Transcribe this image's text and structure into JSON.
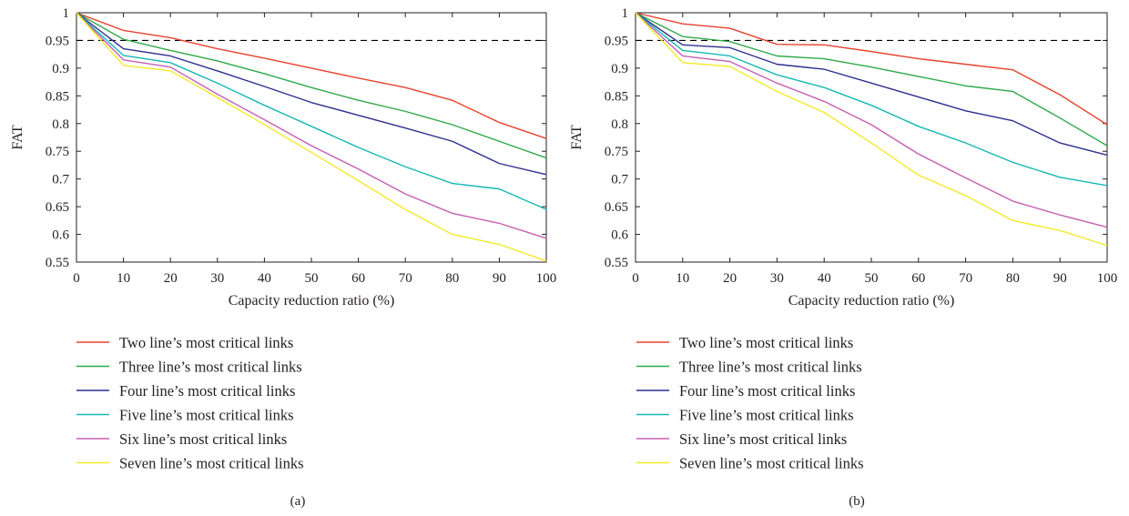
{
  "chart_data": [
    {
      "type": "line",
      "panel_label": "(a)",
      "xlabel": "Capacity reduction ratio (%)",
      "ylabel": "FAT",
      "xlim": [
        0,
        100
      ],
      "ylim": [
        0.55,
        1
      ],
      "x_ticks": [
        "0",
        "10",
        "20",
        "30",
        "40",
        "50",
        "60",
        "70",
        "80",
        "90",
        "100"
      ],
      "y_ticks": [
        "0.55",
        "0.6",
        "0.65",
        "0.7",
        "0.75",
        "0.8",
        "0.85",
        "0.9",
        "0.95",
        "1"
      ],
      "grid": false,
      "legend_position": "below",
      "reference_line": {
        "y": 0.95,
        "style": "dashed",
        "color": "#000000"
      },
      "x": [
        0,
        10,
        20,
        30,
        40,
        50,
        60,
        70,
        80,
        90,
        100
      ],
      "series": [
        {
          "name": "Two line’s most critical links",
          "color": "#e8432f",
          "values": [
            1,
            0.968,
            0.955,
            0.935,
            0.918,
            0.9,
            0.882,
            0.865,
            0.842,
            0.802,
            0.773
          ]
        },
        {
          "name": "Three line’s most critical links",
          "color": "#2fa94a",
          "values": [
            1,
            0.952,
            0.932,
            0.913,
            0.89,
            0.865,
            0.842,
            0.822,
            0.798,
            0.768,
            0.738
          ]
        },
        {
          "name": "Four line’s most critical links",
          "color": "#2d2f8e",
          "values": [
            1,
            0.935,
            0.922,
            0.895,
            0.867,
            0.838,
            0.815,
            0.792,
            0.768,
            0.728,
            0.708
          ]
        },
        {
          "name": "Five line’s most critical links",
          "color": "#14b8b4",
          "values": [
            1,
            0.923,
            0.91,
            0.873,
            0.833,
            0.795,
            0.757,
            0.722,
            0.692,
            0.682,
            0.645
          ]
        },
        {
          "name": "Six line’s most critical links",
          "color": "#c55fb1",
          "values": [
            1,
            0.915,
            0.902,
            0.853,
            0.807,
            0.76,
            0.718,
            0.673,
            0.638,
            0.62,
            0.593
          ]
        },
        {
          "name": "Seven line’s most critical links",
          "color": "#f2ea2a",
          "values": [
            1,
            0.905,
            0.895,
            0.847,
            0.798,
            0.748,
            0.697,
            0.645,
            0.6,
            0.582,
            0.552
          ]
        }
      ]
    },
    {
      "type": "line",
      "panel_label": "(b)",
      "xlabel": "Capacity reduction ratio (%)",
      "ylabel": "FAT",
      "xlim": [
        0,
        100
      ],
      "ylim": [
        0.55,
        1
      ],
      "x_ticks": [
        "0",
        "10",
        "20",
        "30",
        "40",
        "50",
        "60",
        "70",
        "80",
        "90",
        "100"
      ],
      "y_ticks": [
        "0.55",
        "0.6",
        "0.65",
        "0.7",
        "0.75",
        "0.8",
        "0.85",
        "0.9",
        "0.95",
        "1"
      ],
      "grid": false,
      "legend_position": "below",
      "reference_line": {
        "y": 0.95,
        "style": "dashed",
        "color": "#000000"
      },
      "x": [
        0,
        10,
        20,
        30,
        40,
        50,
        60,
        70,
        80,
        90,
        100
      ],
      "series": [
        {
          "name": "Two line’s most critical links",
          "color": "#e8432f",
          "values": [
            1,
            0.98,
            0.972,
            0.943,
            0.942,
            0.93,
            0.917,
            0.907,
            0.897,
            0.852,
            0.798
          ]
        },
        {
          "name": "Three line’s most critical links",
          "color": "#2fa94a",
          "values": [
            1,
            0.957,
            0.948,
            0.922,
            0.917,
            0.902,
            0.885,
            0.868,
            0.858,
            0.81,
            0.76
          ]
        },
        {
          "name": "Four line’s most critical links",
          "color": "#2d2f8e",
          "values": [
            1,
            0.942,
            0.937,
            0.907,
            0.898,
            0.873,
            0.848,
            0.823,
            0.805,
            0.765,
            0.743
          ]
        },
        {
          "name": "Five line’s most critical links",
          "color": "#14b8b4",
          "values": [
            1,
            0.932,
            0.922,
            0.888,
            0.865,
            0.833,
            0.795,
            0.765,
            0.73,
            0.703,
            0.688
          ]
        },
        {
          "name": "Six line’s most critical links",
          "color": "#c55fb1",
          "values": [
            1,
            0.922,
            0.912,
            0.873,
            0.84,
            0.798,
            0.745,
            0.702,
            0.66,
            0.635,
            0.613
          ]
        },
        {
          "name": "Seven line’s most critical links",
          "color": "#f2ea2a",
          "values": [
            1,
            0.91,
            0.903,
            0.858,
            0.82,
            0.765,
            0.707,
            0.67,
            0.625,
            0.607,
            0.58
          ]
        }
      ]
    }
  ]
}
